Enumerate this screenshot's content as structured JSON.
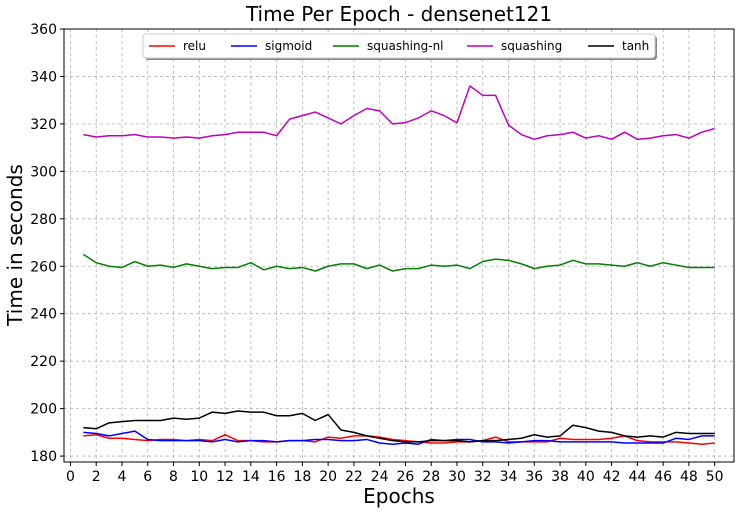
{
  "chart_data": {
    "type": "line",
    "title": "Time Per Epoch - densenet121",
    "xlabel": "Epochs",
    "ylabel": "Time in seconds",
    "xlim": [
      -0.5,
      51.5
    ],
    "ylim": [
      177.5,
      360
    ],
    "xticks": [
      0,
      2,
      4,
      6,
      8,
      10,
      12,
      14,
      16,
      18,
      20,
      22,
      24,
      26,
      28,
      30,
      32,
      34,
      36,
      38,
      40,
      42,
      44,
      46,
      48,
      50
    ],
    "yticks": [
      180,
      200,
      220,
      240,
      260,
      280,
      300,
      320,
      340,
      360
    ],
    "grid": true,
    "legend_position": "top-center",
    "x": [
      1,
      2,
      3,
      4,
      5,
      6,
      7,
      8,
      9,
      10,
      11,
      12,
      13,
      14,
      15,
      16,
      17,
      18,
      19,
      20,
      21,
      22,
      23,
      24,
      25,
      26,
      27,
      28,
      29,
      30,
      31,
      32,
      33,
      34,
      35,
      36,
      37,
      38,
      39,
      40,
      41,
      42,
      43,
      44,
      45,
      46,
      47,
      48,
      49,
      50
    ],
    "series": [
      {
        "name": "relu",
        "color": "#ff0000",
        "values": [
          188.5,
          189.0,
          187.5,
          187.5,
          187.0,
          186.5,
          187.0,
          187.0,
          186.5,
          187.0,
          186.5,
          189.0,
          186.5,
          186.5,
          186.0,
          186.0,
          186.5,
          186.5,
          186.0,
          188.0,
          187.5,
          188.5,
          188.5,
          188.0,
          187.0,
          186.5,
          186.0,
          185.5,
          185.5,
          186.0,
          186.0,
          186.5,
          188.0,
          186.0,
          186.0,
          186.0,
          186.0,
          187.5,
          187.0,
          187.0,
          187.0,
          187.5,
          188.5,
          186.5,
          186.0,
          186.0,
          186.0,
          185.5,
          185.0,
          185.5
        ]
      },
      {
        "name": "sigmoid",
        "color": "#0000ff",
        "values": [
          190.0,
          189.5,
          188.5,
          189.5,
          190.5,
          187.0,
          186.5,
          186.5,
          186.5,
          186.5,
          186.0,
          187.0,
          186.0,
          186.5,
          186.5,
          186.0,
          186.5,
          186.5,
          187.0,
          187.0,
          186.5,
          186.5,
          187.0,
          185.5,
          185.0,
          185.5,
          185.0,
          187.0,
          186.5,
          187.0,
          187.0,
          186.0,
          186.0,
          185.5,
          186.0,
          186.5,
          186.5,
          186.0,
          186.0,
          186.0,
          186.0,
          186.0,
          185.5,
          185.5,
          185.5,
          185.5,
          187.5,
          187.0,
          188.5,
          188.5
        ]
      },
      {
        "name": "squashing-nl",
        "color": "#008000",
        "values": [
          265.0,
          261.5,
          260.0,
          259.5,
          262.0,
          260.0,
          260.5,
          259.5,
          261.0,
          260.0,
          259.0,
          259.5,
          259.5,
          261.5,
          258.5,
          260.0,
          259.0,
          259.5,
          258.0,
          260.0,
          261.0,
          261.0,
          259.0,
          260.5,
          258.0,
          259.0,
          259.0,
          260.5,
          260.0,
          260.5,
          259.0,
          262.0,
          263.0,
          262.5,
          261.0,
          259.0,
          260.0,
          260.5,
          262.5,
          261.0,
          261.0,
          260.5,
          260.0,
          261.5,
          260.0,
          261.5,
          260.5,
          259.5,
          259.5,
          259.5
        ]
      },
      {
        "name": "squashing",
        "color": "#bf00bf",
        "values": [
          315.5,
          314.5,
          315.0,
          315.0,
          315.5,
          314.5,
          314.5,
          314.0,
          314.5,
          314.0,
          315.0,
          315.5,
          316.5,
          316.5,
          316.5,
          315.0,
          322.0,
          323.5,
          325.0,
          322.5,
          320.0,
          323.5,
          326.5,
          325.5,
          320.0,
          320.5,
          322.5,
          325.5,
          323.5,
          320.5,
          336.0,
          332.0,
          332.0,
          319.5,
          315.5,
          313.5,
          315.0,
          315.5,
          316.5,
          314.0,
          315.0,
          313.5,
          316.5,
          313.5,
          314.0,
          315.0,
          315.5,
          314.0,
          316.5,
          318.0
        ]
      },
      {
        "name": "tanh",
        "color": "#000000",
        "values": [
          192.0,
          191.5,
          194.0,
          194.5,
          195.0,
          195.0,
          195.0,
          196.0,
          195.5,
          196.0,
          198.5,
          198.0,
          199.0,
          198.5,
          198.5,
          197.0,
          197.0,
          198.0,
          195.0,
          197.5,
          191.0,
          190.0,
          188.5,
          187.5,
          186.5,
          186.0,
          186.0,
          186.5,
          186.5,
          186.5,
          186.0,
          186.5,
          186.5,
          187.0,
          187.5,
          189.0,
          188.0,
          188.5,
          193.0,
          192.0,
          190.5,
          190.0,
          188.5,
          188.0,
          188.5,
          188.0,
          190.0,
          189.5,
          189.5,
          189.5
        ]
      }
    ]
  }
}
